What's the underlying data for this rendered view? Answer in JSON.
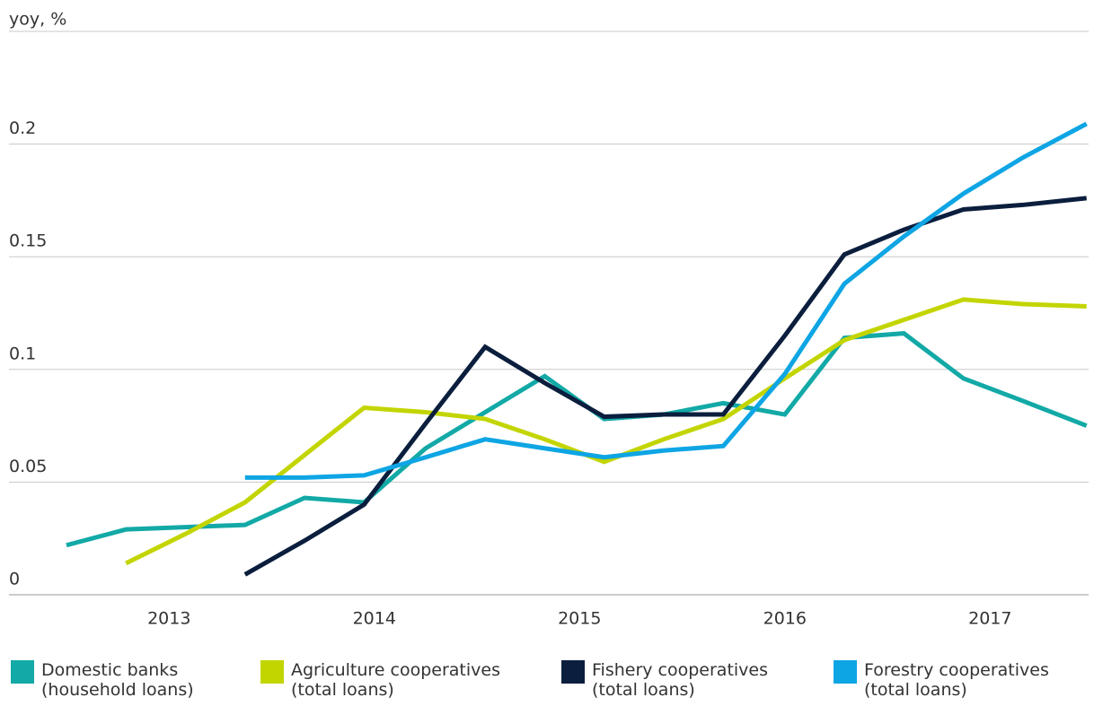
{
  "chart_data": {
    "type": "line",
    "y_label": "yoy, %",
    "x": [
      2012.5,
      2012.79,
      2013.08,
      2013.37,
      2013.66,
      2013.95,
      2014.25,
      2014.54,
      2014.83,
      2015.12,
      2015.41,
      2015.7,
      2016.0,
      2016.29,
      2016.58,
      2016.87,
      2017.16,
      2017.47
    ],
    "xlim": [
      2012.22,
      2017.48
    ],
    "xticks": [
      2013,
      2014,
      2015,
      2016,
      2017
    ],
    "ylim": [
      0,
      0.25
    ],
    "yticks": [
      0,
      0.05,
      0.1,
      0.15,
      0.2
    ],
    "grid": true,
    "series": [
      {
        "name": "Domestic banks\n(household loans)",
        "color": "#12a9a6",
        "values": [
          0.022,
          0.029,
          0.03,
          0.031,
          0.043,
          0.041,
          0.065,
          0.081,
          0.097,
          0.078,
          0.08,
          0.085,
          0.08,
          0.114,
          0.116,
          0.096,
          0.086,
          0.075
        ]
      },
      {
        "name": "Agriculture cooperatives\n(total loans)",
        "color": "#c3d500",
        "values": [
          null,
          0.014,
          0.027,
          0.041,
          0.062,
          0.083,
          0.081,
          0.078,
          0.069,
          0.059,
          0.069,
          0.078,
          0.096,
          0.113,
          0.122,
          0.131,
          0.129,
          0.128
        ]
      },
      {
        "name": "Fishery cooperatives\n(total loans)",
        "color": "#0b1e3d",
        "values": [
          null,
          null,
          null,
          0.009,
          0.024,
          0.04,
          0.076,
          0.11,
          0.094,
          0.079,
          0.08,
          0.08,
          0.115,
          0.151,
          0.162,
          0.171,
          0.173,
          0.176
        ]
      },
      {
        "name": "Forestry cooperatives\n(total loans)",
        "color": "#0ea5e4",
        "values": [
          null,
          null,
          null,
          0.052,
          0.052,
          0.053,
          0.061,
          0.069,
          0.065,
          0.061,
          0.064,
          0.066,
          0.098,
          0.138,
          0.159,
          0.178,
          0.194,
          0.209
        ]
      }
    ]
  }
}
